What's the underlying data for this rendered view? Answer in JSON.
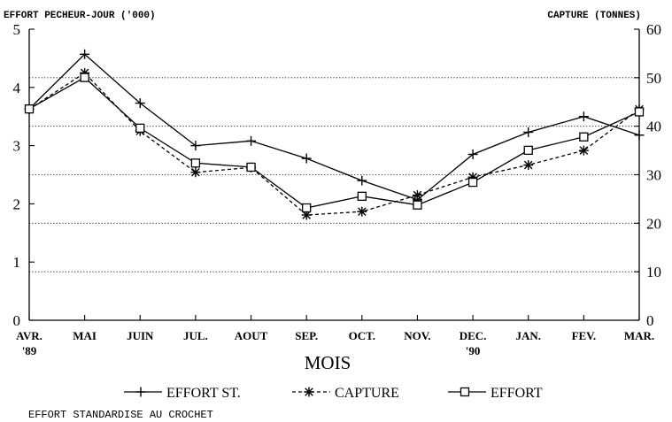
{
  "chart_data": {
    "type": "line",
    "left_axis_label": "EFFORT PECHEUR-JOUR ('000)",
    "right_axis_label": "CAPTURE (TONNES)",
    "left_ticks": [
      "0",
      "1",
      "2",
      "3",
      "4",
      "5"
    ],
    "right_ticks": [
      "0",
      "10",
      "20",
      "30",
      "40",
      "50",
      "60"
    ],
    "ylim_left": [
      0,
      5
    ],
    "ylim_right": [
      0,
      60
    ],
    "categories": [
      {
        "label": "AVR.",
        "sub": "'89"
      },
      {
        "label": "MAI",
        "sub": ""
      },
      {
        "label": "JUIN",
        "sub": ""
      },
      {
        "label": "JUL.",
        "sub": ""
      },
      {
        "label": "AOUT",
        "sub": ""
      },
      {
        "label": "SEP.",
        "sub": ""
      },
      {
        "label": "OCT.",
        "sub": ""
      },
      {
        "label": "NOV.",
        "sub": ""
      },
      {
        "label": "DEC.",
        "sub": "'90"
      },
      {
        "label": "JAN.",
        "sub": ""
      },
      {
        "label": "FEV.",
        "sub": ""
      },
      {
        "label": "MAR.",
        "sub": ""
      }
    ],
    "xlabel": "MOIS",
    "grid": true,
    "series": [
      {
        "name": "EFFORT ST.",
        "axis": "left",
        "marker": "plus",
        "line": "solid",
        "values": [
          3.63,
          4.57,
          3.73,
          3.0,
          3.08,
          2.78,
          2.4,
          2.07,
          2.85,
          3.23,
          3.5,
          3.18
        ]
      },
      {
        "name": "CAPTURE",
        "axis": "right",
        "marker": "asterisk",
        "line": "dashed",
        "values": [
          43.5,
          51.0,
          39.0,
          30.5,
          31.5,
          21.7,
          22.4,
          25.8,
          29.5,
          32.0,
          35.0,
          43.5
        ]
      },
      {
        "name": "EFFORT",
        "axis": "left",
        "marker": "square",
        "line": "solid",
        "values": [
          3.63,
          4.17,
          3.3,
          2.7,
          2.63,
          1.93,
          2.13,
          1.98,
          2.37,
          2.92,
          3.15,
          3.58
        ]
      }
    ],
    "legend_position": "bottom",
    "footnote": "EFFORT STANDARDISE AU CROCHET"
  }
}
